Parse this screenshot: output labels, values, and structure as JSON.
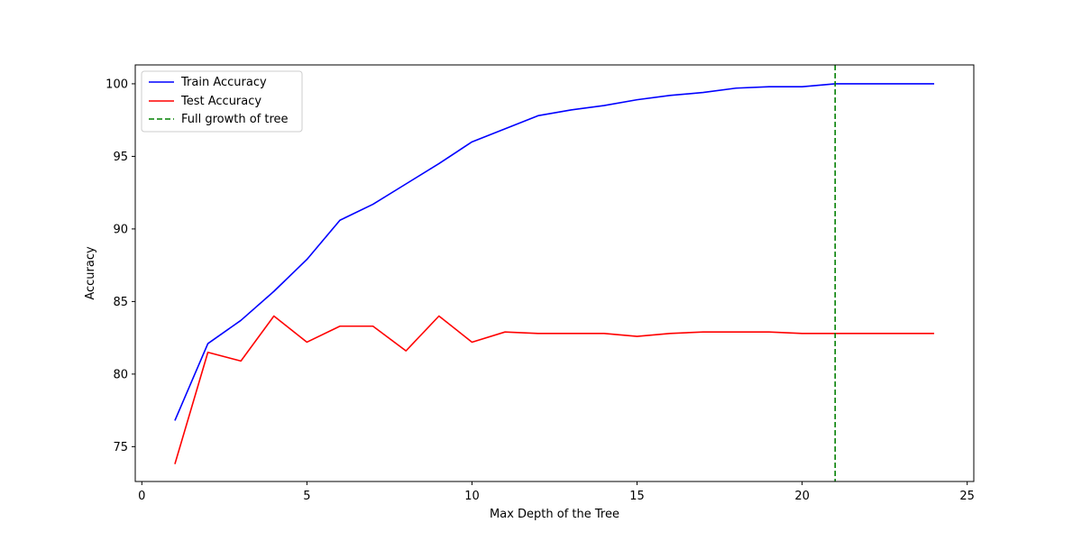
{
  "chart_data": {
    "type": "line",
    "title": "",
    "xlabel": "Max Depth of the Tree",
    "ylabel": "Accuracy",
    "xlim": [
      -0.2,
      25.2
    ],
    "ylim": [
      72.6,
      101.3
    ],
    "xticks": [
      0,
      5,
      10,
      15,
      20,
      25
    ],
    "yticks": [
      75,
      80,
      85,
      90,
      95,
      100
    ],
    "grid": false,
    "legend_position": "upper-left",
    "x": [
      1,
      2,
      3,
      4,
      5,
      6,
      7,
      8,
      9,
      10,
      11,
      12,
      13,
      14,
      15,
      16,
      17,
      18,
      19,
      20,
      21,
      22,
      23,
      24
    ],
    "series": [
      {
        "name": "Train Accuracy",
        "color": "#0000ff",
        "dash": "solid",
        "values": [
          76.8,
          82.1,
          83.7,
          85.7,
          87.9,
          90.6,
          91.7,
          93.1,
          94.5,
          96.0,
          96.9,
          97.8,
          98.2,
          98.5,
          98.9,
          99.2,
          99.4,
          99.7,
          99.8,
          99.8,
          100.0,
          100.0,
          100.0,
          100.0
        ]
      },
      {
        "name": "Test Accuracy",
        "color": "#ff0000",
        "dash": "solid",
        "values": [
          73.8,
          81.5,
          80.9,
          84.0,
          82.2,
          83.3,
          83.3,
          81.6,
          84.0,
          82.2,
          82.9,
          82.8,
          82.8,
          82.8,
          82.6,
          82.8,
          82.9,
          82.9,
          82.9,
          82.8,
          82.8,
          82.8,
          82.8,
          82.8
        ]
      }
    ],
    "vlines": [
      {
        "name": "Full growth of tree",
        "x": 21,
        "color": "#008000",
        "dash": "dashed"
      }
    ]
  }
}
